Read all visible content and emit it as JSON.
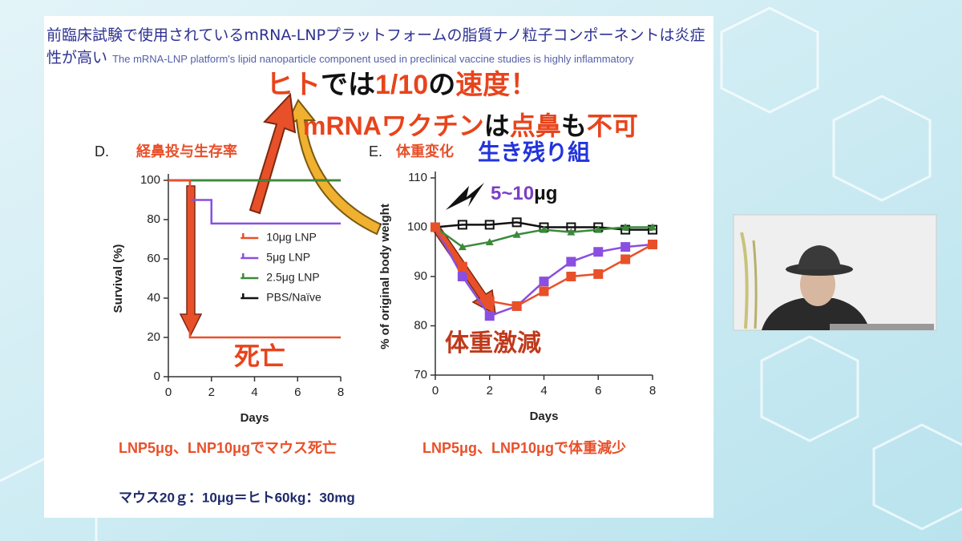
{
  "slide": {
    "title": "前臨床試験で使用されているmRNA-LNPプラットフォームの脂質ナノ粒子コンポーネントは炎症性が高い",
    "subtitle": "The mRNA-LNP platform's lipid nanoparticle component used in preclinical vaccine studies is highly inflammatory",
    "headline": [
      {
        "text": "ヒト",
        "color": "#e8441c"
      },
      {
        "text": "では",
        "color": "#111111"
      },
      {
        "text": "1/10",
        "color": "#e8441c"
      },
      {
        "text": "の",
        "color": "#111111"
      },
      {
        "text": "速度",
        "color": "#e8441c"
      },
      {
        "text": "！",
        "color": "#e8441c"
      }
    ],
    "headline2": [
      {
        "text": "mRNAワクチン",
        "color": "#e8441c"
      },
      {
        "text": "は",
        "color": "#111111"
      },
      {
        "text": "点鼻",
        "color": "#e8441c"
      },
      {
        "text": "も",
        "color": "#111111"
      },
      {
        "text": "不可",
        "color": "#e8441c"
      }
    ],
    "annotations": {
      "d_caption": "経鼻投与生存率",
      "e_caption": "体重変化",
      "survivors": "生き残り組",
      "dose": [
        {
          "text": "5~10",
          "color": "#7b3fc4"
        },
        {
          "text": "μg",
          "color": "#111111"
        }
      ],
      "death": "死亡",
      "weight_drop": "体重激減",
      "note_left": "LNP5μg、LNP10μgでマウス死亡",
      "note_right": "LNP5μg、LNP10μgで体重減少",
      "footer": "マウス20ｇ：10μg＝ヒト60kg：30mg"
    }
  },
  "chart_data": [
    {
      "type": "line",
      "title": "D.",
      "x_label": "Days",
      "y_label": "Survival (%)",
      "xlim": [
        0,
        8
      ],
      "xticks": [
        0,
        2,
        4,
        6,
        8
      ],
      "ylim": [
        0,
        100
      ],
      "yticks": [
        0,
        20,
        40,
        60,
        80,
        100
      ],
      "legend": "center-right",
      "series": [
        {
          "name": "10μg LNP",
          "color": "#e8502a",
          "x": [
            0,
            1,
            1,
            8
          ],
          "values": [
            100,
            100,
            20,
            20
          ]
        },
        {
          "name": "5μg LNP",
          "color": "#8a4fe0",
          "x": [
            0,
            1,
            1,
            2,
            2,
            8
          ],
          "values": [
            100,
            100,
            90,
            90,
            78,
            78
          ]
        },
        {
          "name": "2.5μg LNP",
          "color": "#3a8a3a",
          "x": [
            0,
            8
          ],
          "values": [
            100,
            100
          ]
        },
        {
          "name": "PBS/Naïve",
          "color": "#111111",
          "x": [
            0,
            8
          ],
          "values": [
            100,
            100
          ]
        }
      ]
    },
    {
      "type": "line",
      "title": "E.",
      "x_label": "Days",
      "y_label": "% of original body weight",
      "x": [
        0,
        1,
        2,
        3,
        4,
        5,
        6,
        7,
        8
      ],
      "xlim": [
        0,
        8
      ],
      "xticks": [
        0,
        2,
        4,
        6,
        8
      ],
      "ylim": [
        70,
        110
      ],
      "yticks": [
        70,
        80,
        90,
        100,
        110
      ],
      "series": [
        {
          "color": "#e8502a",
          "marker": "square",
          "values": [
            100,
            92,
            85,
            84,
            87,
            90,
            90.5,
            93.5,
            96.5
          ]
        },
        {
          "color": "#8a4fe0",
          "marker": "square",
          "values": [
            100,
            90,
            82,
            84,
            89,
            93,
            95,
            96,
            96.5
          ]
        },
        {
          "color": "#3a8a3a",
          "marker": "triangle",
          "values": [
            100,
            96,
            97,
            98.5,
            99.5,
            99,
            99.5,
            100,
            100
          ]
        },
        {
          "color": "#111111",
          "marker": "open-square",
          "values": [
            100,
            100.5,
            100.5,
            101,
            100,
            100,
            100,
            99.5,
            99.5
          ]
        }
      ]
    }
  ]
}
